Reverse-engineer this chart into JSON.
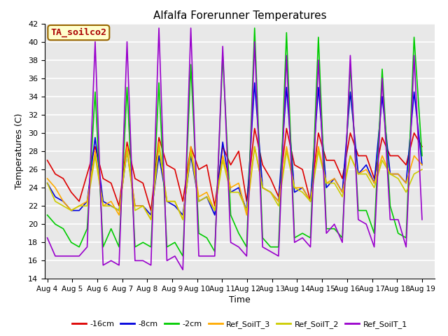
{
  "title": "Alfalfa Forerunner Temperatures",
  "xlabel": "Time",
  "ylabel": "Temperatures (C)",
  "ylim": [
    14,
    42
  ],
  "background_color": "#ffffff",
  "plot_bg_color": "#e8e8e8",
  "annotation_text": "TA_soilco2",
  "annotation_bg": "#ffffcc",
  "annotation_border": "#996600",
  "x_tick_labels": [
    "Aug 4",
    "Aug 5",
    "Aug 6",
    "Aug 7",
    "Aug 8",
    "Aug 9",
    "Aug 10",
    "Aug 11",
    "Aug 12",
    "Aug 13",
    "Aug 14",
    "Aug 15",
    "Aug 16",
    "Aug 17",
    "Aug 18",
    "Aug 19"
  ],
  "series_colors": {
    "-16cm": "#dd0000",
    "-8cm": "#0000dd",
    "-2cm": "#00cc00",
    "Ref_SoilT_3": "#ffaa00",
    "Ref_SoilT_2": "#cccc00",
    "Ref_SoilT_1": "#9900cc"
  },
  "series_data": {
    "-16cm": [
      27.0,
      25.5,
      25.0,
      23.5,
      22.5,
      25.5,
      28.5,
      25.0,
      24.5,
      22.0,
      29.0,
      25.0,
      24.5,
      21.5,
      29.5,
      26.5,
      26.0,
      22.5,
      28.5,
      26.0,
      26.5,
      22.0,
      28.5,
      26.5,
      28.0,
      22.5,
      30.5,
      26.5,
      25.0,
      23.0,
      30.5,
      26.5,
      26.0,
      22.5,
      30.0,
      27.0,
      27.0,
      25.0,
      30.0,
      27.5,
      27.5,
      25.0,
      29.5,
      27.5,
      27.5,
      26.5,
      30.0,
      28.5
    ],
    "-8cm": [
      24.5,
      23.0,
      22.5,
      21.5,
      21.5,
      22.5,
      29.5,
      22.5,
      22.0,
      21.5,
      28.0,
      22.0,
      22.0,
      21.0,
      27.5,
      22.5,
      22.0,
      21.0,
      27.5,
      22.5,
      23.0,
      21.0,
      29.0,
      23.5,
      24.0,
      21.5,
      35.5,
      24.0,
      23.5,
      22.5,
      35.0,
      23.5,
      24.0,
      22.5,
      35.0,
      24.0,
      25.0,
      23.5,
      34.5,
      25.5,
      26.5,
      24.5,
      34.0,
      25.5,
      25.5,
      24.5,
      34.5,
      26.5
    ],
    "-2cm": [
      21.0,
      20.0,
      19.5,
      18.0,
      17.5,
      19.5,
      34.5,
      17.5,
      19.5,
      17.5,
      35.0,
      17.5,
      18.0,
      17.5,
      35.5,
      17.5,
      18.0,
      16.5,
      37.5,
      19.0,
      18.5,
      17.0,
      38.5,
      21.0,
      19.0,
      17.5,
      41.5,
      18.5,
      17.5,
      17.5,
      41.0,
      18.5,
      19.0,
      18.5,
      40.5,
      19.5,
      19.5,
      18.5,
      37.5,
      21.5,
      21.5,
      19.0,
      37.0,
      22.0,
      19.0,
      18.5,
      40.5,
      27.5
    ],
    "Ref_SoilT_3": [
      25.0,
      24.0,
      22.5,
      21.5,
      22.0,
      22.5,
      28.0,
      22.0,
      22.5,
      21.0,
      28.5,
      22.0,
      22.0,
      20.5,
      29.0,
      22.5,
      22.5,
      20.5,
      28.5,
      23.0,
      23.5,
      21.5,
      27.5,
      24.0,
      24.5,
      21.0,
      28.5,
      24.0,
      23.5,
      22.5,
      28.5,
      24.0,
      24.0,
      22.5,
      28.5,
      24.5,
      25.0,
      23.5,
      27.5,
      25.5,
      26.0,
      24.5,
      27.5,
      25.5,
      25.5,
      24.5,
      27.5,
      26.5
    ],
    "Ref_SoilT_2": [
      24.5,
      22.5,
      22.0,
      21.5,
      22.0,
      22.0,
      27.5,
      22.0,
      22.0,
      21.5,
      28.0,
      21.5,
      22.0,
      20.5,
      28.5,
      22.5,
      22.5,
      20.5,
      28.0,
      22.5,
      23.0,
      21.5,
      27.0,
      23.5,
      23.5,
      21.5,
      28.5,
      24.0,
      23.5,
      22.0,
      28.0,
      24.0,
      23.5,
      22.5,
      28.0,
      24.5,
      24.5,
      23.0,
      27.5,
      25.5,
      25.5,
      24.0,
      27.0,
      25.5,
      25.0,
      23.5,
      25.5,
      26.0
    ],
    "Ref_SoilT_1": [
      18.5,
      16.5,
      16.5,
      16.5,
      16.5,
      17.5,
      40.0,
      15.5,
      16.0,
      15.5,
      40.0,
      16.0,
      16.0,
      15.5,
      41.5,
      16.0,
      16.5,
      15.0,
      41.5,
      16.5,
      16.5,
      16.5,
      39.5,
      18.0,
      17.5,
      16.5,
      40.0,
      17.5,
      17.0,
      16.5,
      38.5,
      18.0,
      18.5,
      17.5,
      38.0,
      19.0,
      20.0,
      18.0,
      38.5,
      20.5,
      20.0,
      17.5,
      36.0,
      20.5,
      20.5,
      17.5,
      38.5,
      20.5
    ]
  }
}
